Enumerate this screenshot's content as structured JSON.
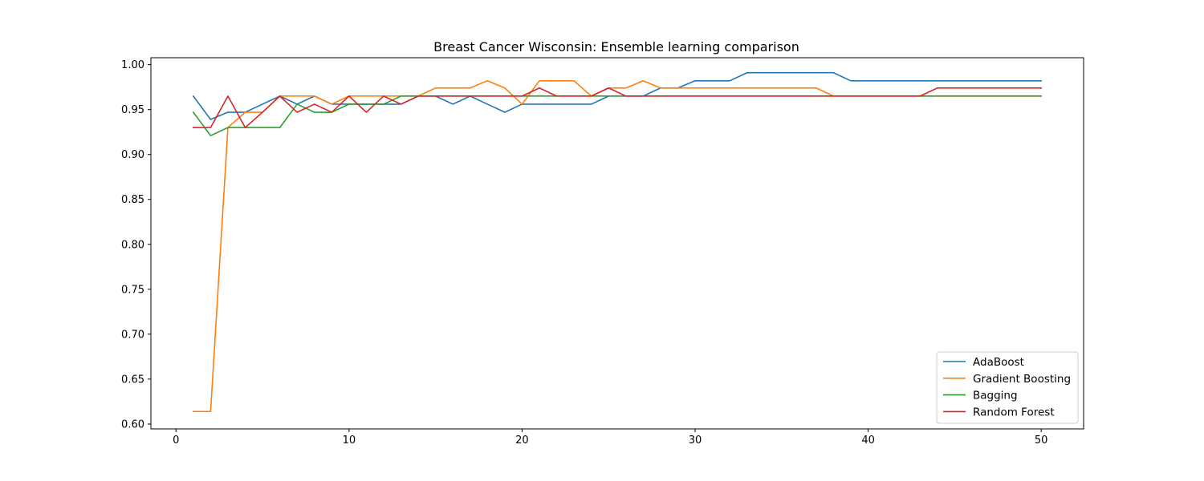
{
  "chart_data": {
    "type": "line",
    "title": "Breast Cancer Wisconsin: Ensemble learning comparison",
    "xlabel": "",
    "ylabel": "",
    "xlim": [
      -1.45,
      52.45
    ],
    "ylim": [
      0.5946,
      1.0077
    ],
    "xticks": [
      0,
      10,
      20,
      30,
      40,
      50
    ],
    "xtick_labels": [
      "0",
      "10",
      "20",
      "30",
      "40",
      "50"
    ],
    "yticks": [
      0.6,
      0.65,
      0.7,
      0.75,
      0.8,
      0.85,
      0.9,
      0.95,
      1.0
    ],
    "ytick_labels": [
      "0.60",
      "0.65",
      "0.70",
      "0.75",
      "0.80",
      "0.85",
      "0.90",
      "0.95",
      "1.00"
    ],
    "grid": false,
    "legend_position": "lower-right",
    "x": [
      1,
      2,
      3,
      4,
      5,
      6,
      7,
      8,
      9,
      10,
      11,
      12,
      13,
      14,
      15,
      16,
      17,
      18,
      19,
      20,
      21,
      22,
      23,
      24,
      25,
      26,
      27,
      28,
      29,
      30,
      31,
      32,
      33,
      34,
      35,
      36,
      37,
      38,
      39,
      40,
      41,
      42,
      43,
      44,
      45,
      46,
      47,
      48,
      49,
      50
    ],
    "series": [
      {
        "name": "AdaBoost",
        "color": "#1f77b4",
        "values": [
          0.965,
          0.939,
          0.947,
          0.947,
          0.956,
          0.965,
          0.956,
          0.965,
          0.956,
          0.956,
          0.956,
          0.956,
          0.956,
          0.965,
          0.965,
          0.956,
          0.965,
          0.956,
          0.947,
          0.956,
          0.956,
          0.956,
          0.956,
          0.956,
          0.965,
          0.965,
          0.965,
          0.974,
          0.974,
          0.982,
          0.982,
          0.982,
          0.991,
          0.991,
          0.991,
          0.991,
          0.991,
          0.991,
          0.982,
          0.982,
          0.982,
          0.982,
          0.982,
          0.982,
          0.982,
          0.982,
          0.982,
          0.982,
          0.982,
          0.982
        ]
      },
      {
        "name": "Gradient Boosting",
        "color": "#ff7f0e",
        "values": [
          0.614,
          0.614,
          0.93,
          0.947,
          0.947,
          0.965,
          0.965,
          0.965,
          0.956,
          0.965,
          0.965,
          0.965,
          0.965,
          0.965,
          0.974,
          0.974,
          0.974,
          0.982,
          0.974,
          0.956,
          0.982,
          0.982,
          0.982,
          0.965,
          0.974,
          0.974,
          0.982,
          0.974,
          0.974,
          0.974,
          0.974,
          0.974,
          0.974,
          0.974,
          0.974,
          0.974,
          0.974,
          0.965,
          0.965,
          0.965,
          0.965,
          0.965,
          0.965,
          0.965,
          0.965,
          0.965,
          0.965,
          0.965,
          0.965,
          0.965
        ]
      },
      {
        "name": "Bagging",
        "color": "#2ca02c",
        "values": [
          0.947,
          0.921,
          0.93,
          0.93,
          0.93,
          0.93,
          0.956,
          0.947,
          0.947,
          0.956,
          0.956,
          0.956,
          0.965,
          0.965,
          0.965,
          0.965,
          0.965,
          0.965,
          0.965,
          0.965,
          0.965,
          0.965,
          0.965,
          0.965,
          0.965,
          0.965,
          0.965,
          0.965,
          0.965,
          0.965,
          0.965,
          0.965,
          0.965,
          0.965,
          0.965,
          0.965,
          0.965,
          0.965,
          0.965,
          0.965,
          0.965,
          0.965,
          0.965,
          0.965,
          0.965,
          0.965,
          0.965,
          0.965,
          0.965,
          0.965
        ]
      },
      {
        "name": "Random Forest",
        "color": "#d62728",
        "values": [
          0.93,
          0.93,
          0.965,
          0.93,
          0.947,
          0.965,
          0.947,
          0.956,
          0.947,
          0.965,
          0.947,
          0.965,
          0.956,
          0.965,
          0.965,
          0.965,
          0.965,
          0.965,
          0.965,
          0.965,
          0.974,
          0.965,
          0.965,
          0.965,
          0.974,
          0.965,
          0.965,
          0.965,
          0.965,
          0.965,
          0.965,
          0.965,
          0.965,
          0.965,
          0.965,
          0.965,
          0.965,
          0.965,
          0.965,
          0.965,
          0.965,
          0.965,
          0.965,
          0.974,
          0.974,
          0.974,
          0.974,
          0.974,
          0.974,
          0.974
        ]
      }
    ]
  }
}
